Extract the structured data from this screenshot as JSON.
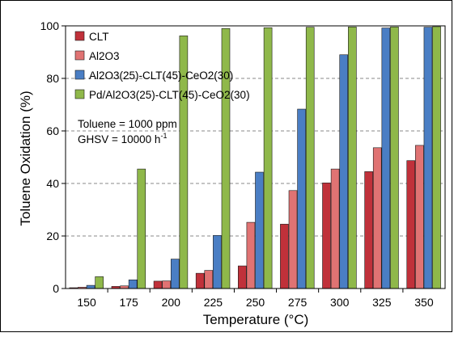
{
  "chart_data": {
    "type": "bar",
    "xlabel": "Temperature (°C)",
    "ylabel": "Toluene Oxidation (%)",
    "ylim": [
      0,
      100
    ],
    "yticks": [
      0,
      20,
      40,
      60,
      80,
      100
    ],
    "grid": "horizontal dashed",
    "legend_position": "top-left",
    "categories": [
      "150",
      "175",
      "200",
      "225",
      "250",
      "275",
      "300",
      "325",
      "350"
    ],
    "series": [
      {
        "name": "CLT",
        "color": "#c0313a",
        "values": [
          0.3,
          0.8,
          2.8,
          5.8,
          8.6,
          24.5,
          40.2,
          44.5,
          48.7
        ]
      },
      {
        "name": "Al2O3",
        "color": "#e07373",
        "values": [
          0.5,
          1.0,
          2.9,
          6.9,
          25.2,
          37.3,
          45.5,
          53.6,
          54.5
        ]
      },
      {
        "name": "Al2O3(25)-CLT(45)-CeO2(30)",
        "color": "#4a7ec4",
        "values": [
          1.2,
          3.3,
          11.2,
          20.2,
          44.3,
          68.3,
          89.0,
          99.2,
          99.5
        ]
      },
      {
        "name": "Pd/Al2O3(25)-CLT(45)-CeO2(30)",
        "color": "#8fb84a",
        "values": [
          4.5,
          45.5,
          96.2,
          99.0,
          99.3,
          99.5,
          99.6,
          99.6,
          99.7
        ]
      }
    ],
    "annotations": [
      {
        "text": "Toluene = 1000 ppm"
      },
      {
        "text": "GHSV = 10000 h",
        "superscript": "-1"
      }
    ]
  }
}
